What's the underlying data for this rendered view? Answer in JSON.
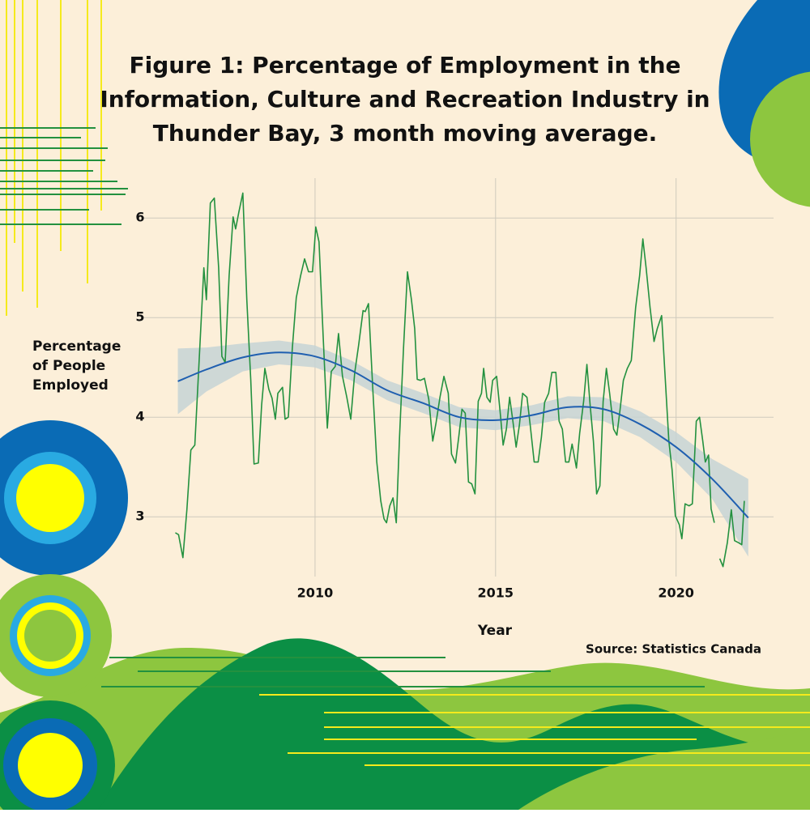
{
  "chart_data": {
    "type": "line",
    "title": [
      "Figure 1: Percentage of Employment in the",
      "Information, Culture and Recreation Industry in",
      "Thunder Bay, 3 month moving average."
    ],
    "xlabel": "Year",
    "ylabel": [
      "Percentage",
      "of People",
      "Employed"
    ],
    "source": "Source: Statistics Canada",
    "xlim": [
      2005.2,
      2022.7
    ],
    "ylim": [
      2.4,
      6.4
    ],
    "xticks": [
      2010,
      2015,
      2020
    ],
    "yticks": [
      3,
      4,
      5,
      6
    ],
    "grid": true,
    "series": [
      {
        "color": "#23913f",
        "x": [
          2006.13,
          2006.22,
          2006.34,
          2006.45,
          2006.56,
          2006.67,
          2006.79,
          2006.92,
          2006.99,
          2007.1,
          2007.21,
          2007.33,
          2007.42,
          2007.51,
          2007.62,
          2007.73,
          2007.8,
          2007.89,
          2008.0,
          2008.11,
          2008.22,
          2008.31,
          2008.43,
          2008.52,
          2008.61,
          2008.72,
          2008.81,
          2008.9,
          2008.97,
          2009.1,
          2009.17,
          2009.26,
          2009.37,
          2009.48,
          2009.6,
          2009.71,
          2009.82,
          2009.93,
          2010.02,
          2010.11,
          2010.22,
          2010.34,
          2010.45,
          2010.56,
          2010.65,
          2010.76,
          2010.88,
          2010.99,
          2011.1,
          2011.21,
          2011.33,
          2011.39,
          2011.48,
          2011.6,
          2011.71,
          2011.82,
          2011.91,
          2011.98,
          2012.07,
          2012.16,
          2012.25,
          2012.34,
          2012.45,
          2012.56,
          2012.67,
          2012.76,
          2012.83,
          2012.92,
          2013.03,
          2013.15,
          2013.26,
          2013.35,
          2013.46,
          2013.57,
          2013.69,
          2013.78,
          2013.89,
          2013.98,
          2014.07,
          2014.16,
          2014.25,
          2014.34,
          2014.43,
          2014.52,
          2014.61,
          2014.67,
          2014.76,
          2014.85,
          2014.92,
          2015.03,
          2015.12,
          2015.21,
          2015.3,
          2015.39,
          2015.48,
          2015.57,
          2015.66,
          2015.75,
          2015.87,
          2015.96,
          2016.07,
          2016.18,
          2016.27,
          2016.36,
          2016.47,
          2016.56,
          2016.67,
          2016.76,
          2016.85,
          2016.94,
          2017.03,
          2017.12,
          2017.24,
          2017.33,
          2017.44,
          2017.53,
          2017.62,
          2017.71,
          2017.8,
          2017.89,
          2017.98,
          2018.07,
          2018.16,
          2018.27,
          2018.36,
          2018.45,
          2018.54,
          2018.65,
          2018.76,
          2018.88,
          2018.99,
          2019.08,
          2019.17,
          2019.28,
          2019.39,
          2019.48,
          2019.6,
          2019.69,
          2019.8,
          2019.89,
          2019.98,
          2020.09,
          2020.16,
          2020.25,
          2020.36,
          2020.45,
          2020.56,
          2020.65,
          2020.74,
          2020.81,
          2020.9,
          2020.97,
          2021.06,
          2021.13,
          2021.21,
          2021.3,
          2021.42,
          2021.53,
          2021.62,
          2021.73,
          2021.82,
          2021.89
        ],
        "values": [
          2.84,
          2.82,
          2.59,
          3.07,
          3.67,
          3.72,
          4.57,
          5.5,
          5.18,
          6.15,
          6.2,
          5.5,
          4.61,
          4.55,
          5.42,
          6.01,
          5.89,
          6.06,
          6.25,
          5.18,
          4.37,
          3.53,
          3.54,
          4.12,
          4.49,
          4.28,
          4.19,
          3.98,
          4.24,
          4.3,
          3.98,
          4.0,
          4.69,
          5.2,
          5.42,
          5.59,
          5.46,
          5.46,
          5.91,
          5.76,
          4.85,
          3.89,
          4.46,
          4.51,
          4.84,
          4.41,
          4.2,
          3.98,
          4.45,
          4.73,
          5.07,
          5.06,
          5.14,
          4.28,
          3.55,
          3.16,
          2.98,
          2.94,
          3.11,
          3.19,
          2.94,
          3.8,
          4.69,
          5.46,
          5.18,
          4.89,
          4.38,
          4.37,
          4.39,
          4.18,
          3.76,
          3.94,
          4.2,
          4.41,
          4.24,
          3.63,
          3.54,
          3.8,
          4.08,
          4.04,
          3.35,
          3.33,
          3.23,
          4.16,
          4.24,
          4.49,
          4.2,
          4.15,
          4.37,
          4.41,
          4.08,
          3.72,
          3.88,
          4.2,
          3.96,
          3.7,
          3.92,
          4.24,
          4.2,
          3.92,
          3.55,
          3.55,
          3.8,
          4.15,
          4.24,
          4.45,
          4.45,
          3.96,
          3.88,
          3.55,
          3.55,
          3.73,
          3.49,
          3.84,
          4.16,
          4.53,
          4.12,
          3.76,
          3.23,
          3.31,
          4.16,
          4.49,
          4.24,
          3.88,
          3.82,
          4.08,
          4.37,
          4.49,
          4.57,
          5.1,
          5.42,
          5.79,
          5.5,
          5.1,
          4.76,
          4.89,
          5.02,
          4.45,
          3.76,
          3.47,
          3.01,
          2.92,
          2.78,
          3.13,
          3.11,
          3.13,
          3.96,
          4.0,
          3.76,
          3.55,
          3.62,
          3.08,
          2.94,
          null,
          2.58,
          2.5,
          2.74,
          3.07,
          2.76,
          2.74,
          2.72,
          3.16
        ]
      }
    ],
    "smooth": {
      "color": "#1f5fb0",
      "band_color": "#c5d3d5",
      "x": [
        2006.2,
        2007,
        2008,
        2009,
        2010,
        2011,
        2012,
        2013,
        2014,
        2015,
        2016,
        2017,
        2018,
        2019,
        2020,
        2021,
        2022
      ],
      "values": [
        4.36,
        4.48,
        4.6,
        4.65,
        4.61,
        4.47,
        4.27,
        4.14,
        4.0,
        3.97,
        4.02,
        4.1,
        4.08,
        3.93,
        3.7,
        3.38,
        2.99
      ],
      "lower": [
        4.03,
        4.26,
        4.46,
        4.53,
        4.5,
        4.37,
        4.17,
        4.04,
        3.9,
        3.87,
        3.92,
        3.99,
        3.96,
        3.8,
        3.55,
        3.18,
        2.6
      ],
      "upper": [
        4.69,
        4.7,
        4.74,
        4.77,
        4.72,
        4.57,
        4.37,
        4.24,
        4.1,
        4.07,
        4.12,
        4.21,
        4.2,
        4.06,
        3.85,
        3.58,
        3.38
      ]
    }
  }
}
